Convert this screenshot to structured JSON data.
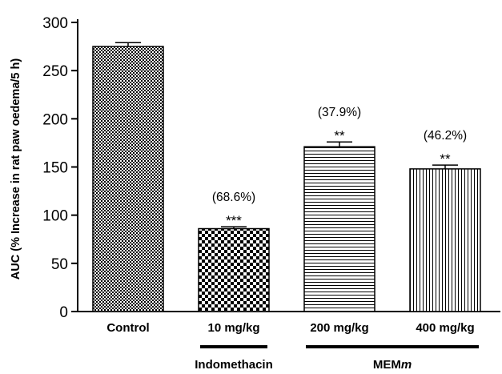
{
  "chart_data": {
    "type": "bar",
    "categories": [
      "Control",
      "10 mg/kg",
      "200 mg/kg",
      "400 mg/kg"
    ],
    "values": [
      275,
      86,
      171,
      148
    ],
    "error": [
      4,
      2,
      5,
      4
    ],
    "percent_labels": [
      "",
      "(68.6%)",
      "(37.9%)",
      "(46.2%)"
    ],
    "significance": [
      "",
      "***",
      "**",
      "**"
    ],
    "ylabel": "AUC (% Increase in rat paw oedema/5 h)",
    "ylim": [
      0,
      300
    ],
    "yticks": [
      "0",
      "50",
      "100",
      "150",
      "200",
      "250",
      "300"
    ],
    "groups": [
      {
        "label": "Indomethacin",
        "italic_suffix": "",
        "categories": [
          "10 mg/kg"
        ]
      },
      {
        "label": "MEM",
        "italic_suffix": "m",
        "categories": [
          "200 mg/kg",
          "400 mg/kg"
        ]
      }
    ],
    "patterns": [
      "fine-check",
      "checkerboard",
      "horizontal-lines",
      "vertical-lines"
    ],
    "grid": false,
    "legend": "none"
  }
}
